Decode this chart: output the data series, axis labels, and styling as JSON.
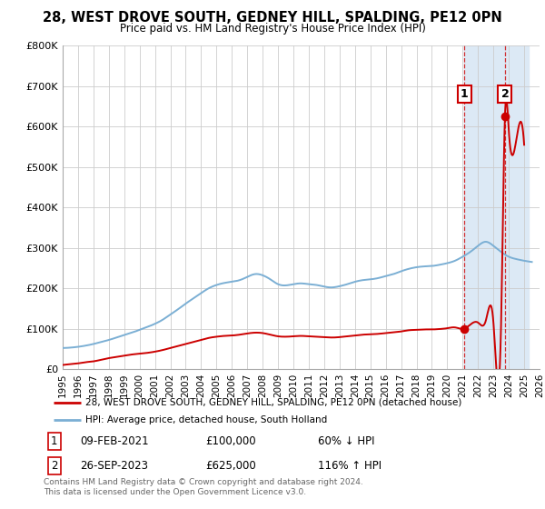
{
  "title": "28, WEST DROVE SOUTH, GEDNEY HILL, SPALDING, PE12 0PN",
  "subtitle": "Price paid vs. HM Land Registry's House Price Index (HPI)",
  "hpi_color": "#7bafd4",
  "price_color": "#cc0000",
  "highlight_color": "#dce9f5",
  "ylim": [
    0,
    800000
  ],
  "yticks": [
    0,
    100000,
    200000,
    300000,
    400000,
    500000,
    600000,
    700000,
    800000
  ],
  "ytick_labels": [
    "£0",
    "£100K",
    "£200K",
    "£300K",
    "£400K",
    "£500K",
    "£600K",
    "£700K",
    "£800K"
  ],
  "sale1_year": 2021.1,
  "sale1_price": 100000,
  "sale2_year": 2023.75,
  "sale2_price": 625000,
  "legend_line1": "28, WEST DROVE SOUTH, GEDNEY HILL, SPALDING, PE12 0PN (detached house)",
  "legend_line2": "HPI: Average price, detached house, South Holland",
  "footnote": "Contains HM Land Registry data © Crown copyright and database right 2024.\nThis data is licensed under the Open Government Licence v3.0.",
  "xmin": 1995,
  "xmax": 2026,
  "hpi_years": [
    1995,
    1995.5,
    1996,
    1996.5,
    1997,
    1997.5,
    1998,
    1998.5,
    1999,
    1999.5,
    2000,
    2000.5,
    2001,
    2001.5,
    2002,
    2002.5,
    2003,
    2003.5,
    2004,
    2004.5,
    2005,
    2005.5,
    2006,
    2006.5,
    2007,
    2007.5,
    2008,
    2008.5,
    2009,
    2009.5,
    2010,
    2010.5,
    2011,
    2011.5,
    2012,
    2012.5,
    2013,
    2013.5,
    2014,
    2014.5,
    2015,
    2015.5,
    2016,
    2016.5,
    2017,
    2017.5,
    2018,
    2018.5,
    2019,
    2019.5,
    2020,
    2020.5,
    2021,
    2021.5,
    2022,
    2022.5,
    2023,
    2023.5,
    2024,
    2024.5,
    2025,
    2025.5
  ],
  "hpi_values": [
    52000,
    53000,
    55000,
    58000,
    62000,
    67000,
    72000,
    78000,
    84000,
    90000,
    97000,
    104000,
    112000,
    122000,
    135000,
    148000,
    162000,
    175000,
    188000,
    200000,
    208000,
    213000,
    216000,
    220000,
    228000,
    235000,
    232000,
    222000,
    210000,
    207000,
    210000,
    212000,
    210000,
    208000,
    204000,
    202000,
    205000,
    210000,
    216000,
    220000,
    222000,
    225000,
    230000,
    235000,
    242000,
    248000,
    252000,
    254000,
    255000,
    258000,
    262000,
    268000,
    278000,
    290000,
    305000,
    315000,
    305000,
    290000,
    278000,
    272000,
    268000,
    265000
  ],
  "price_years": [
    1995,
    1995.5,
    1996,
    1996.5,
    1997,
    1997.5,
    1998,
    1998.5,
    1999,
    1999.5,
    2000,
    2000.5,
    2001,
    2001.5,
    2002,
    2002.5,
    2003,
    2003.5,
    2004,
    2004.5,
    2005,
    2005.5,
    2006,
    2006.5,
    2007,
    2007.5,
    2008,
    2008.5,
    2009,
    2009.5,
    2010,
    2010.5,
    2011,
    2011.5,
    2012,
    2012.5,
    2013,
    2013.5,
    2014,
    2014.5,
    2015,
    2015.5,
    2016,
    2016.5,
    2017,
    2017.5,
    2018,
    2018.5,
    2019,
    2019.5,
    2020,
    2020.5,
    2021.1,
    2021.5,
    2022,
    2022.5,
    2023,
    2023.5,
    2023.75,
    2024,
    2024.5,
    2025
  ],
  "price_values": [
    10000,
    12000,
    14000,
    17000,
    19000,
    23000,
    27000,
    30000,
    33000,
    36000,
    38000,
    40000,
    43000,
    47000,
    52000,
    57000,
    62000,
    67000,
    72000,
    77000,
    80000,
    82000,
    83000,
    85000,
    88000,
    90000,
    89000,
    85000,
    81000,
    80000,
    81000,
    82000,
    81000,
    80000,
    79000,
    78000,
    79000,
    81000,
    83000,
    85000,
    86000,
    87000,
    89000,
    91000,
    93000,
    96000,
    97000,
    98000,
    98000,
    99000,
    101000,
    103000,
    100000,
    110000,
    115000,
    119000,
    116000,
    112000,
    625000,
    590000,
    570000,
    555000
  ]
}
